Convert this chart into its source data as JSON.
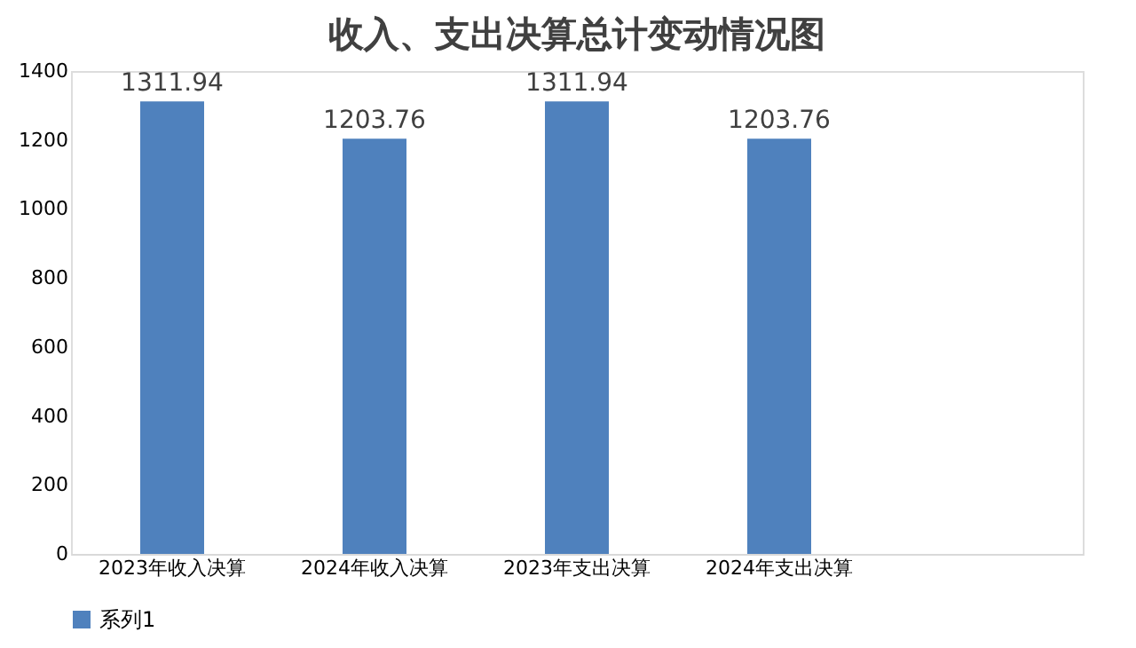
{
  "chart_data": {
    "type": "bar",
    "title": "收入、支出决算总计变动情况图",
    "categories": [
      "2023年收入决算",
      "2024年收入决算",
      "2023年支出决算",
      "2024年支出决算",
      null
    ],
    "series": [
      {
        "name": "系列1",
        "color": "#4f81bd",
        "values": [
          1311.94,
          1203.76,
          1311.94,
          1203.76,
          null
        ]
      }
    ],
    "ylim": [
      0,
      1400
    ],
    "yticks": [
      0,
      200,
      400,
      600,
      800,
      1000,
      1200,
      1400
    ],
    "grid": false,
    "legend": "bottom",
    "data_labels": true
  }
}
